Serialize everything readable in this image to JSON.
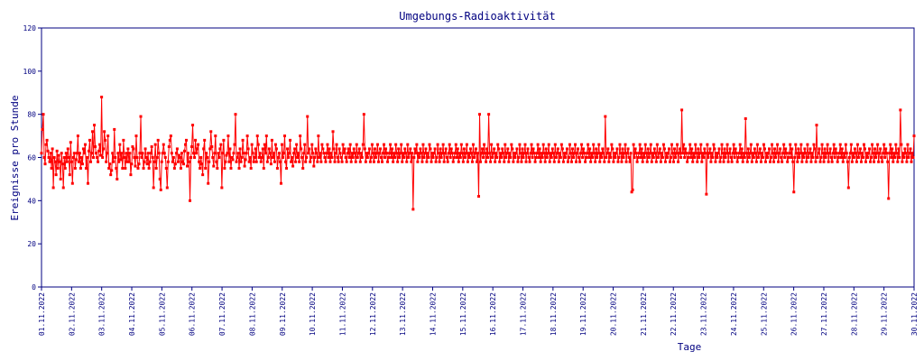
{
  "chart_data": {
    "type": "line",
    "title": "Umgebungs-Radioaktivität",
    "xlabel": "Tage",
    "ylabel": "Ereignisse pro Stunde",
    "ylim": [
      0,
      120
    ],
    "yticks": [
      "0",
      "20",
      "40",
      "60",
      "80",
      "100",
      "120"
    ],
    "x_tick_labels": [
      "01.11.2022",
      "02.11.2022",
      "03.11.2022",
      "04.11.2022",
      "05.11.2022",
      "06.11.2022",
      "07.11.2022",
      "08.11.2022",
      "09.11.2022",
      "10.11.2022",
      "11.11.2022",
      "12.11.2022",
      "13.11.2022",
      "14.11.2022",
      "15.11.2022",
      "16.11.2022",
      "17.11.2022",
      "18.11.2022",
      "19.11.2022",
      "20.11.2022",
      "21.11.2022",
      "22.11.2022",
      "23.11.2022",
      "24.11.2022",
      "25.11.2022",
      "26.11.2022",
      "27.11.2022",
      "28.11.2022",
      "29.11.2022",
      "30.11.2022"
    ],
    "grid": false,
    "series": [
      {
        "color": "#ff0000",
        "points_per_day": 24,
        "values": [
          62,
          73,
          80,
          60,
          57,
          66,
          68,
          63,
          60,
          58,
          62,
          55,
          64,
          46,
          60,
          58,
          52,
          63,
          55,
          61,
          58,
          50,
          62,
          57,
          46,
          60,
          55,
          62,
          58,
          64,
          60,
          52,
          67,
          58,
          48,
          60,
          62,
          55,
          59,
          62,
          70,
          58,
          62,
          55,
          60,
          57,
          64,
          62,
          66,
          55,
          60,
          48,
          63,
          68,
          58,
          62,
          72,
          60,
          75,
          65,
          62,
          60,
          58,
          63,
          66,
          61,
          88,
          60,
          64,
          72,
          68,
          58,
          62,
          70,
          55,
          57,
          52,
          54,
          62,
          58,
          73,
          60,
          55,
          50,
          62,
          58,
          66,
          59,
          62,
          55,
          68,
          60,
          55,
          62,
          58,
          64,
          58,
          62,
          52,
          57,
          65,
          64,
          60,
          56,
          70,
          60,
          55,
          57,
          62,
          79,
          60,
          62,
          55,
          58,
          64,
          60,
          57,
          62,
          55,
          58,
          62,
          65,
          60,
          46,
          58,
          66,
          55,
          60,
          68,
          62,
          50,
          45,
          58,
          62,
          66,
          62,
          60,
          55,
          46,
          58,
          65,
          68,
          70,
          62,
          58,
          60,
          55,
          57,
          62,
          64,
          58,
          61,
          60,
          55,
          62,
          58,
          57,
          63,
          66,
          68,
          56,
          62,
          58,
          40,
          60,
          65,
          75,
          62,
          60,
          68,
          62,
          64,
          66,
          58,
          55,
          60,
          57,
          52,
          64,
          68,
          55,
          62,
          60,
          48,
          58,
          64,
          72,
          65,
          60,
          56,
          62,
          70,
          58,
          55,
          62,
          60,
          64,
          66,
          46,
          62,
          68,
          55,
          58,
          61,
          62,
          70,
          58,
          64,
          55,
          60,
          59,
          62,
          66,
          80,
          58,
          60,
          62,
          55,
          64,
          58,
          60,
          68,
          62,
          56,
          59,
          62,
          70,
          64,
          58,
          60,
          55,
          66,
          62,
          58,
          60,
          64,
          58,
          70,
          66,
          60,
          62,
          58,
          60,
          64,
          55,
          66,
          62,
          70,
          58,
          60,
          64,
          62,
          57,
          68,
          60,
          62,
          58,
          66,
          64,
          55,
          60,
          62,
          58,
          48,
          66,
          60,
          62,
          70,
          58,
          55,
          64,
          60,
          62,
          68,
          58,
          60,
          56,
          62,
          64,
          58,
          66,
          60,
          62,
          58,
          70,
          64,
          60,
          55,
          62,
          66,
          58,
          60,
          79,
          62,
          64,
          58,
          60,
          66,
          62,
          56,
          60,
          64,
          62,
          58,
          70,
          60,
          62,
          58,
          66,
          64,
          62,
          60,
          58,
          62,
          66,
          60,
          64,
          58,
          62,
          60,
          72,
          64,
          58,
          62,
          66,
          60,
          58,
          64,
          62,
          60,
          58,
          66,
          62,
          64,
          60,
          58,
          62,
          64,
          60,
          66,
          58,
          62,
          60,
          64,
          62,
          58,
          66,
          60,
          62,
          64,
          58,
          62,
          60,
          66,
          80,
          64,
          58,
          62,
          60,
          62,
          64,
          58,
          60,
          66,
          62,
          58,
          64,
          60,
          62,
          66,
          58,
          62,
          64,
          60,
          58,
          62,
          66,
          60,
          64,
          62,
          58,
          60,
          62,
          66,
          60,
          64,
          58,
          62,
          60,
          66,
          62,
          58,
          64,
          60,
          62,
          66,
          58,
          62,
          60,
          64,
          62,
          58,
          66,
          60,
          62,
          64,
          58,
          62,
          36,
          60,
          64,
          62,
          66,
          58,
          62,
          60,
          64,
          62,
          58,
          66,
          60,
          62,
          64,
          58,
          62,
          60,
          66,
          64,
          58,
          62,
          60,
          62,
          64,
          58,
          60,
          66,
          62,
          58,
          64,
          60,
          62,
          66,
          58,
          62,
          64,
          60,
          58,
          62,
          66,
          60,
          64,
          62,
          58,
          60,
          62,
          66,
          60,
          64,
          58,
          62,
          60,
          66,
          62,
          58,
          64,
          60,
          62,
          66,
          58,
          62,
          60,
          64,
          62,
          58,
          66,
          60,
          62,
          64,
          58,
          62,
          42,
          80,
          58,
          62,
          64,
          60,
          66,
          62,
          58,
          64,
          60,
          80,
          62,
          58,
          66,
          60,
          62,
          64,
          58,
          62,
          60,
          66,
          64,
          58,
          62,
          60,
          64,
          62,
          58,
          66,
          60,
          62,
          64,
          58,
          62,
          60,
          66,
          64,
          58,
          62,
          60,
          62,
          64,
          58,
          60,
          66,
          62,
          58,
          64,
          60,
          62,
          66,
          58,
          62,
          64,
          60,
          58,
          62,
          66,
          60,
          64,
          62,
          58,
          60,
          62,
          66,
          60,
          64,
          58,
          62,
          60,
          66,
          62,
          58,
          64,
          60,
          62,
          66,
          58,
          62,
          60,
          64,
          62,
          58,
          66,
          60,
          62,
          64,
          58,
          62,
          60,
          66,
          64,
          58,
          62,
          60,
          62,
          64,
          58,
          60,
          66,
          62,
          58,
          64,
          60,
          62,
          66,
          58,
          62,
          64,
          60,
          58,
          62,
          66,
          60,
          64,
          62,
          58,
          60,
          62,
          66,
          60,
          64,
          58,
          62,
          60,
          66,
          62,
          58,
          64,
          60,
          62,
          66,
          58,
          62,
          60,
          64,
          62,
          58,
          79,
          60,
          62,
          64,
          58,
          62,
          60,
          66,
          64,
          58,
          62,
          60,
          62,
          64,
          58,
          60,
          66,
          62,
          58,
          64,
          60,
          62,
          66,
          58,
          62,
          64,
          60,
          58,
          62,
          44,
          45,
          66,
          60,
          64,
          62,
          58,
          60,
          62,
          66,
          60,
          64,
          58,
          62,
          60,
          66,
          62,
          58,
          64,
          60,
          62,
          66,
          58,
          62,
          60,
          64,
          62,
          58,
          66,
          60,
          62,
          64,
          58,
          62,
          60,
          66,
          64,
          58,
          62,
          60,
          62,
          64,
          58,
          60,
          66,
          62,
          58,
          64,
          60,
          62,
          66,
          58,
          62,
          64,
          60,
          82,
          62,
          66,
          60,
          64,
          62,
          58,
          60,
          62,
          66,
          60,
          64,
          58,
          62,
          60,
          66,
          62,
          58,
          64,
          60,
          62,
          66,
          58,
          62,
          60,
          64,
          62,
          43,
          66,
          60,
          62,
          64,
          58,
          62,
          60,
          66,
          64,
          58,
          62,
          60,
          62,
          64,
          58,
          60,
          66,
          62,
          58,
          64,
          60,
          62,
          66,
          58,
          62,
          64,
          60,
          58,
          62,
          66,
          60,
          64,
          62,
          58,
          60,
          62,
          66,
          60,
          64,
          58,
          62,
          60,
          78,
          62,
          58,
          64,
          60,
          62,
          66,
          58,
          62,
          60,
          64,
          62,
          58,
          66,
          60,
          62,
          64,
          58,
          62,
          60,
          66,
          64,
          58,
          62,
          60,
          62,
          64,
          58,
          60,
          66,
          62,
          58,
          64,
          60,
          62,
          66,
          58,
          62,
          64,
          60,
          58,
          62,
          66,
          60,
          64,
          62,
          58,
          60,
          62,
          66,
          60,
          64,
          58,
          44,
          60,
          66,
          62,
          58,
          64,
          60,
          62,
          66,
          58,
          62,
          60,
          64,
          62,
          58,
          66,
          60,
          62,
          64,
          58,
          62,
          60,
          66,
          64,
          58,
          75,
          60,
          62,
          64,
          58,
          60,
          66,
          62,
          58,
          64,
          60,
          62,
          66,
          58,
          62,
          64,
          60,
          58,
          62,
          66,
          60,
          64,
          62,
          58,
          60,
          62,
          66,
          60,
          64,
          58,
          62,
          60,
          66,
          62,
          58,
          46,
          60,
          62,
          66,
          58,
          62,
          60,
          64,
          62,
          58,
          66,
          60,
          62,
          64,
          58,
          62,
          60,
          66,
          64,
          58,
          62,
          60,
          62,
          64,
          58,
          60,
          66,
          62,
          58,
          64,
          60,
          62,
          66,
          58,
          62,
          64,
          60,
          58,
          62,
          66,
          60,
          64,
          62,
          58,
          41,
          62,
          66,
          60,
          64,
          58,
          62,
          60,
          66,
          62,
          58,
          64,
          60,
          82,
          66,
          58,
          62,
          60,
          64,
          62,
          58,
          66,
          60,
          62,
          64,
          58,
          62,
          60,
          70
        ]
      }
    ]
  }
}
